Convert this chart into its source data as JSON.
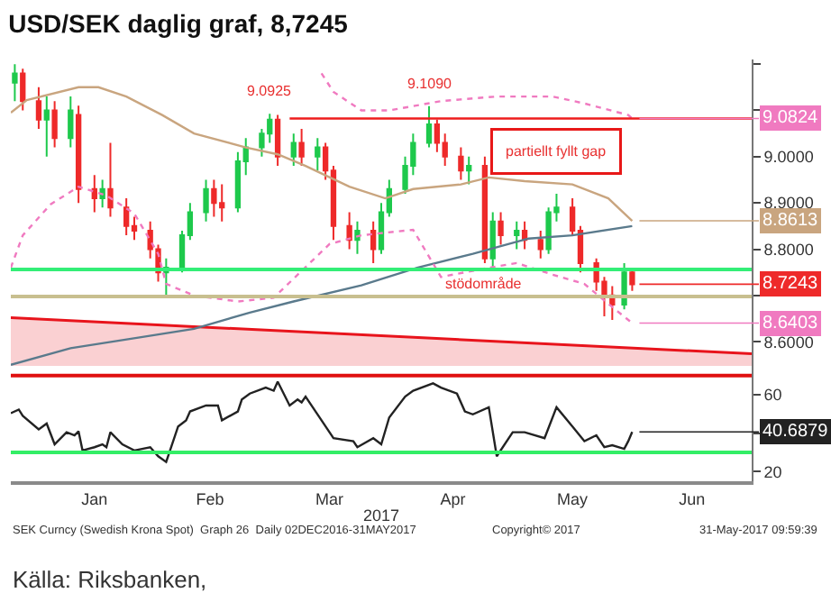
{
  "chart_data": [
    {
      "type": "candlestick",
      "title": "USD/SEK daglig graf, 8,7245",
      "x": [
        "2016-12-27",
        "2016-12-29",
        "2017-01-02",
        "2017-01-04",
        "2017-01-06",
        "2017-01-10",
        "2017-01-12",
        "2017-01-16",
        "2017-01-18",
        "2017-01-20",
        "2017-01-24",
        "2017-01-26",
        "2017-01-30",
        "2017-02-01",
        "2017-02-03",
        "2017-02-07",
        "2017-02-09",
        "2017-02-13",
        "2017-02-15",
        "2017-02-17",
        "2017-02-21",
        "2017-02-23",
        "2017-02-27",
        "2017-03-01",
        "2017-03-03",
        "2017-03-07",
        "2017-03-09",
        "2017-03-13",
        "2017-03-15",
        "2017-03-17",
        "2017-03-21",
        "2017-03-23",
        "2017-03-27",
        "2017-03-29",
        "2017-03-31",
        "2017-04-04",
        "2017-04-06",
        "2017-04-10",
        "2017-04-12",
        "2017-04-14",
        "2017-04-18",
        "2017-04-20",
        "2017-04-24",
        "2017-04-26",
        "2017-04-28",
        "2017-05-02",
        "2017-05-04",
        "2017-05-08",
        "2017-05-10",
        "2017-05-12",
        "2017-05-16",
        "2017-05-18",
        "2017-05-22",
        "2017-05-24",
        "2017-05-26",
        "2017-05-29",
        "2017-05-31"
      ],
      "ohlc": [
        [
          9.16,
          9.2,
          9.12,
          9.18
        ],
        [
          9.18,
          9.19,
          9.1,
          9.12
        ],
        [
          9.12,
          9.15,
          9.06,
          9.08
        ],
        [
          9.08,
          9.13,
          9.0,
          9.1
        ],
        [
          9.1,
          9.12,
          9.02,
          9.04
        ],
        [
          9.04,
          9.13,
          9.02,
          9.1
        ],
        [
          9.09,
          9.11,
          8.9,
          8.93
        ],
        [
          8.93,
          8.96,
          8.88,
          8.91
        ],
        [
          8.91,
          8.95,
          8.89,
          8.93
        ],
        [
          8.93,
          9.03,
          8.87,
          8.89
        ],
        [
          8.89,
          8.91,
          8.83,
          8.85
        ],
        [
          8.85,
          8.87,
          8.82,
          8.84
        ],
        [
          8.84,
          8.86,
          8.78,
          8.8
        ],
        [
          8.8,
          8.81,
          8.73,
          8.75
        ],
        [
          8.75,
          8.78,
          8.7,
          8.76
        ],
        [
          8.76,
          8.84,
          8.75,
          8.83
        ],
        [
          8.83,
          8.9,
          8.82,
          8.88
        ],
        [
          8.88,
          8.95,
          8.86,
          8.93
        ],
        [
          8.93,
          8.95,
          8.87,
          8.9
        ],
        [
          8.9,
          8.94,
          8.86,
          8.89
        ],
        [
          8.89,
          9.01,
          8.88,
          8.99
        ],
        [
          8.99,
          9.04,
          8.96,
          9.02
        ],
        [
          9.02,
          9.06,
          9.0,
          9.05
        ],
        [
          9.05,
          9.0925,
          9.03,
          9.08
        ],
        [
          9.08,
          9.09,
          8.98,
          9.0
        ],
        [
          9.0,
          9.05,
          8.98,
          9.03
        ],
        [
          9.03,
          9.06,
          8.98,
          9.0
        ],
        [
          9.0,
          9.04,
          8.97,
          9.02
        ],
        [
          9.02,
          9.03,
          8.95,
          8.97
        ],
        [
          8.97,
          8.98,
          8.82,
          8.85
        ],
        [
          8.85,
          8.88,
          8.8,
          8.82
        ],
        [
          8.82,
          8.86,
          8.79,
          8.84
        ],
        [
          8.84,
          8.86,
          8.77,
          8.8
        ],
        [
          8.8,
          8.9,
          8.79,
          8.88
        ],
        [
          8.88,
          8.95,
          8.87,
          8.93
        ],
        [
          8.93,
          9.0,
          8.92,
          8.98
        ],
        [
          8.98,
          9.05,
          8.96,
          9.03
        ],
        [
          9.03,
          9.109,
          9.02,
          9.07
        ],
        [
          9.07,
          9.08,
          9.01,
          9.03
        ],
        [
          9.03,
          9.05,
          8.98,
          9.0
        ],
        [
          9.0,
          9.02,
          8.95,
          8.97
        ],
        [
          8.97,
          9.0,
          8.94,
          8.98
        ],
        [
          8.98,
          9.0,
          8.77,
          8.78
        ],
        [
          8.78,
          8.88,
          8.76,
          8.86
        ],
        [
          8.86,
          8.88,
          8.81,
          8.83
        ],
        [
          8.83,
          8.86,
          8.8,
          8.84
        ],
        [
          8.84,
          8.86,
          8.8,
          8.82
        ],
        [
          8.82,
          8.84,
          8.78,
          8.8
        ],
        [
          8.8,
          8.89,
          8.79,
          8.88
        ],
        [
          8.88,
          8.92,
          8.86,
          8.89
        ],
        [
          8.89,
          8.91,
          8.83,
          8.84
        ],
        [
          8.84,
          8.85,
          8.75,
          8.77
        ],
        [
          8.77,
          8.78,
          8.71,
          8.73
        ],
        [
          8.73,
          8.74,
          8.655,
          8.7
        ],
        [
          8.7,
          8.72,
          8.647,
          8.68
        ],
        [
          8.68,
          8.77,
          8.67,
          8.75
        ],
        [
          8.75,
          8.76,
          8.71,
          8.7243
        ]
      ],
      "colors": [
        "#1ec94c",
        "#ee2a2a",
        "#ee2a2a",
        "#1ec94c",
        "#ee2a2a",
        "#1ec94c",
        "#ee2a2a",
        "#ee2a2a",
        "#1ec94c",
        "#ee2a2a",
        "#ee2a2a",
        "#ee2a2a",
        "#ee2a2a",
        "#ee2a2a",
        "#1ec94c",
        "#1ec94c",
        "#1ec94c",
        "#1ec94c",
        "#ee2a2a",
        "#ee2a2a",
        "#1ec94c",
        "#1ec94c",
        "#1ec94c",
        "#1ec94c",
        "#ee2a2a",
        "#1ec94c",
        "#ee2a2a",
        "#1ec94c",
        "#ee2a2a",
        "#ee2a2a",
        "#ee2a2a",
        "#1ec94c",
        "#ee2a2a",
        "#1ec94c",
        "#1ec94c",
        "#1ec94c",
        "#1ec94c",
        "#1ec94c",
        "#ee2a2a",
        "#ee2a2a",
        "#ee2a2a",
        "#1ec94c",
        "#ee2a2a",
        "#1ec94c",
        "#ee2a2a",
        "#1ec94c",
        "#ee2a2a",
        "#ee2a2a",
        "#1ec94c",
        "#1ec94c",
        "#ee2a2a",
        "#ee2a2a",
        "#ee2a2a",
        "#ee2a2a",
        "#ee2a2a",
        "#1ec94c",
        "#ee2a2a"
      ],
      "xlim": [
        "2016-12-26",
        "2017-06-30"
      ],
      "ylim": [
        8.54,
        9.21
      ],
      "yticks": [
        {
          "value": 8.6,
          "label": "8.6000"
        },
        {
          "value": 8.7,
          "label": null
        },
        {
          "value": 8.8,
          "label": "8.8000"
        },
        {
          "value": 8.9,
          "label": "8.9000"
        },
        {
          "value": 9.0,
          "label": "9.0000"
        },
        {
          "value": 9.1,
          "label": null
        },
        {
          "value": 9.2,
          "label": null
        }
      ],
      "tick_labels": "y",
      "series": [
        {
          "type": "area",
          "color": "#e8141c",
          "x": [
            "2016-12-26",
            "2017-06-30"
          ],
          "values": [
            8.652,
            8.574
          ]
        },
        {
          "type": "line",
          "color": "#c9a57f",
          "x": [
            "2016-12-26",
            "2016-12-30",
            "2017-01-12",
            "2017-01-17",
            "2017-01-24",
            "2017-02-02",
            "2017-02-10",
            "2017-02-23",
            "2017-03-03",
            "2017-03-10",
            "2017-03-21",
            "2017-03-30",
            "2017-04-06",
            "2017-04-18",
            "2017-04-25",
            "2017-05-04",
            "2017-05-16",
            "2017-05-25",
            "2017-05-31"
          ],
          "values": [
            9.095,
            9.122,
            9.15,
            9.15,
            9.13,
            9.09,
            9.05,
            9.02,
            9.005,
            8.98,
            8.935,
            8.91,
            8.93,
            8.94,
            8.955,
            8.947,
            8.94,
            8.91,
            8.8613
          ]
        },
        {
          "type": "line",
          "color": "#5a7a8c",
          "x": [
            "2016-12-26",
            "2017-01-10",
            "2017-01-27",
            "2017-02-10",
            "2017-02-24",
            "2017-03-07",
            "2017-03-24",
            "2017-04-07",
            "2017-04-21",
            "2017-05-05",
            "2017-05-16",
            "2017-05-31"
          ],
          "values": [
            8.55,
            8.586,
            8.609,
            8.628,
            8.663,
            8.687,
            8.722,
            8.76,
            8.79,
            8.823,
            8.83,
            8.85
          ]
        },
        {
          "type": "line",
          "color": "#f07ac0",
          "line_style": "dotted",
          "x": [
            "2017-03-14",
            "2017-03-17",
            "2017-03-24",
            "2017-03-31",
            "2017-04-13",
            "2017-04-27",
            "2017-05-11",
            "2017-05-19",
            "2017-05-30",
            "2017-05-31"
          ],
          "values": [
            9.18,
            9.14,
            9.1,
            9.1,
            9.12,
            9.13,
            9.13,
            9.115,
            9.09,
            9.0824
          ]
        },
        {
          "type": "line",
          "color": "#f07ac0",
          "line_style": "dotted",
          "x": [
            "2016-12-26",
            "2016-12-29",
            "2017-01-05",
            "2017-01-12",
            "2017-01-19",
            "2017-01-26",
            "2017-02-01",
            "2017-02-03",
            "2017-02-10",
            "2017-02-21",
            "2017-03-02",
            "2017-03-16",
            "2017-03-24",
            "2017-04-06",
            "2017-04-13",
            "2017-04-25",
            "2017-05-02",
            "2017-05-11",
            "2017-05-19",
            "2017-05-26",
            "2017-05-31"
          ],
          "values": [
            8.76,
            8.83,
            8.897,
            8.935,
            8.916,
            8.877,
            8.79,
            8.725,
            8.7,
            8.687,
            8.695,
            8.811,
            8.83,
            8.842,
            8.74,
            8.76,
            8.77,
            8.745,
            8.725,
            8.675,
            8.6403
          ]
        },
        {
          "type": "line",
          "color": "#ee1c1c",
          "x": [
            "2017-03-06",
            "2017-06-30"
          ],
          "values": [
            9.0824,
            9.0824
          ]
        }
      ],
      "ref_lines": [
        {
          "axis": "y",
          "value": 8.756,
          "color": "#33ee77"
        },
        {
          "axis": "y",
          "value": 8.698,
          "color": "#c8bf8f"
        }
      ],
      "annotations": [
        {
          "text": "9.0925",
          "x": "2017-03-01",
          "y": 9.0925
        },
        {
          "text": "9.1090",
          "x": "2017-04-10",
          "y": 9.109
        },
        {
          "text": "partiellt fyllt gap",
          "x": "2017-05-12",
          "y": 8.93
        },
        {
          "text": "stödområde",
          "x": "2017-04-24",
          "y": 8.698
        },
        {
          "text": "9.0824",
          "x": "2017-05-31",
          "y": 9.0824
        },
        {
          "text": "8.8613",
          "x": "2017-05-31",
          "y": 8.8613
        },
        {
          "text": "8.7243",
          "x": "2017-05-31",
          "y": 8.7243
        },
        {
          "text": "8.6403",
          "x": "2017-05-31",
          "y": 8.6403
        }
      ]
    },
    {
      "type": "line",
      "xlabel": "2017",
      "x": [
        "2016-12-26",
        "2016-12-28",
        "2016-12-29",
        "2017-01-02",
        "2017-01-03",
        "2017-01-04",
        "2017-01-06",
        "2017-01-09",
        "2017-01-11",
        "2017-01-12",
        "2017-01-13",
        "2017-01-16",
        "2017-01-18",
        "2017-01-19",
        "2017-01-20",
        "2017-01-23",
        "2017-01-26",
        "2017-01-30",
        "2017-02-01",
        "2017-02-03",
        "2017-02-06",
        "2017-02-08",
        "2017-02-09",
        "2017-02-13",
        "2017-02-16",
        "2017-02-17",
        "2017-02-21",
        "2017-02-22",
        "2017-02-24",
        "2017-02-28",
        "2017-03-02",
        "2017-03-03",
        "2017-03-06",
        "2017-03-08",
        "2017-03-09",
        "2017-03-10",
        "2017-03-14",
        "2017-03-17",
        "2017-03-22",
        "2017-03-23",
        "2017-03-27",
        "2017-03-29",
        "2017-03-31",
        "2017-04-04",
        "2017-04-06",
        "2017-04-11",
        "2017-04-13",
        "2017-04-17",
        "2017-04-19",
        "2017-04-21",
        "2017-04-25",
        "2017-04-27",
        "2017-05-01",
        "2017-05-04",
        "2017-05-09",
        "2017-05-12",
        "2017-05-16",
        "2017-05-19",
        "2017-05-22",
        "2017-05-24",
        "2017-05-26",
        "2017-05-29",
        "2017-05-30",
        "2017-05-31"
      ],
      "series": [
        {
          "color": "#222222",
          "values": [
            50.4,
            52.3,
            49,
            42,
            43.5,
            45,
            34.2,
            40.5,
            38.9,
            41,
            31,
            32.7,
            34.2,
            32.7,
            40.5,
            34.2,
            31,
            32.7,
            28,
            25,
            43.5,
            46.7,
            51.3,
            54.4,
            54.4,
            46.7,
            51.3,
            57.5,
            60.6,
            63.7,
            62.1,
            66.8,
            54.4,
            57.5,
            56,
            59,
            46.7,
            37.4,
            35.8,
            32.7,
            37.4,
            34.2,
            48.2,
            59,
            62.1,
            65.9,
            63.7,
            60.6,
            51.3,
            49.8,
            53.5,
            28,
            40.5,
            40.5,
            37.4,
            53.5,
            43.5,
            35.8,
            38.9,
            32.7,
            33.7,
            31.8,
            35.8,
            40.6879
          ]
        }
      ],
      "xlim": [
        "2016-12-26",
        "2017-06-30"
      ],
      "xticks": [
        {
          "value": "2017-01-16",
          "label": "Jan"
        },
        {
          "value": "2017-02-14",
          "label": "Feb"
        },
        {
          "value": "2017-03-16",
          "label": "Mar"
        },
        {
          "value": "2017-04-16",
          "label": "Apr"
        },
        {
          "value": "2017-05-16",
          "label": "May"
        },
        {
          "value": "2017-06-15",
          "label": "Jun"
        }
      ],
      "ylim": [
        15,
        75
      ],
      "yticks": [
        20,
        {
          "value": 40,
          "label": null
        },
        60
      ],
      "ref_lines": [
        {
          "axis": "y",
          "value": 70,
          "color": "#e01010"
        },
        {
          "axis": "y",
          "value": 30,
          "color": "#33ee66"
        }
      ],
      "annotations": [
        "SEK Curncy (Swedish Krona Spot)  Graph 26  Daily 02DEC2016-31MAY2017",
        "Copyright© 2017",
        "31-May-2017 09:59:39",
        "Källa: Riksbanken,",
        {
          "text": "40.6879",
          "x": "2017-05-31",
          "y": 40.6879
        }
      ]
    }
  ]
}
